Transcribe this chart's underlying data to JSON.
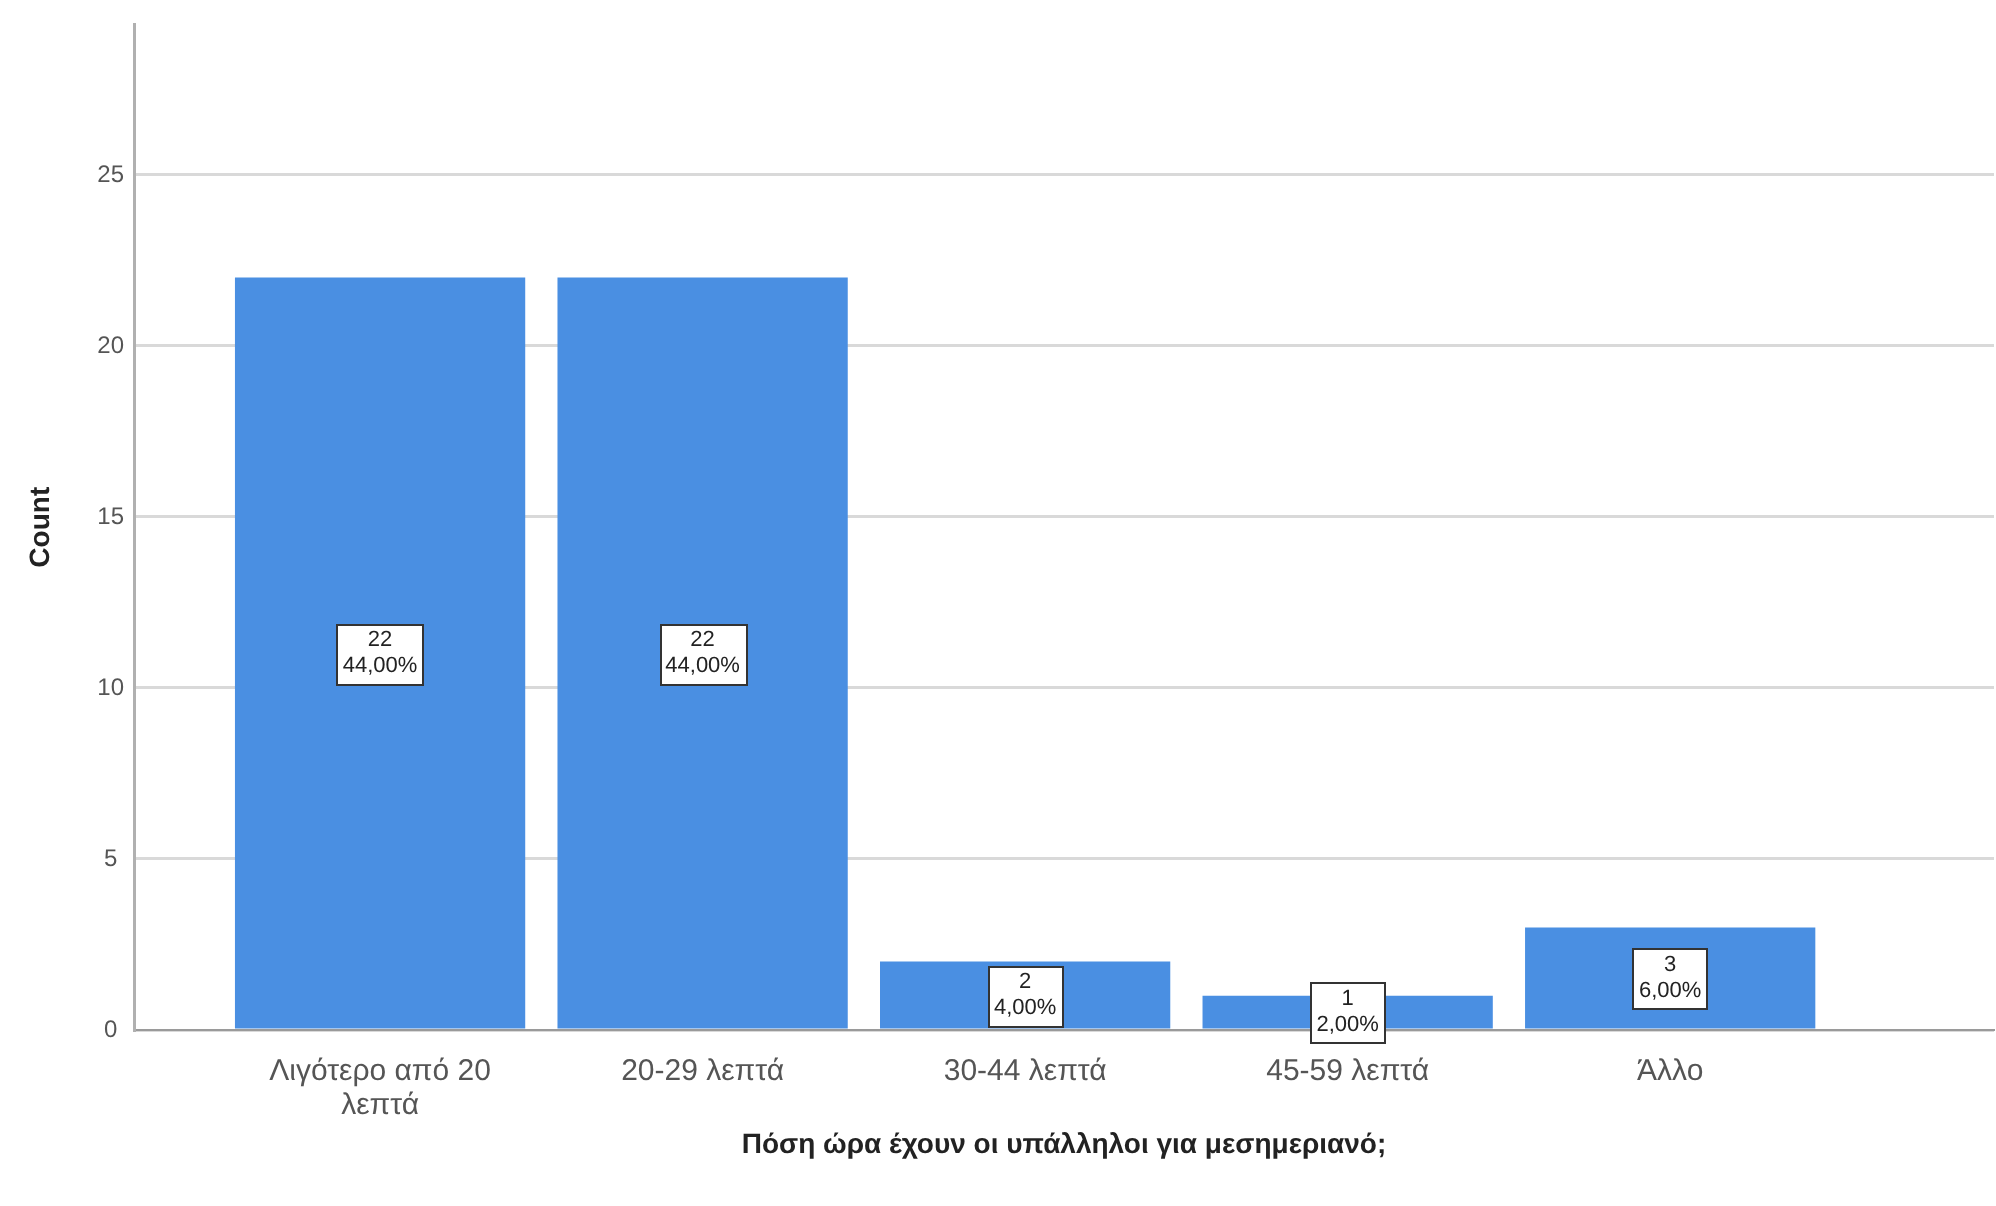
{
  "chart_data": {
    "type": "bar",
    "xlabel": "Πόση ώρα έχουν οι υπάλληλοι για μεσημεριανό;",
    "ylabel": "Count",
    "categories": [
      "Λιγότερο από 20 λεπτά",
      "20-29 λεπτά",
      "30-44 λεπτά",
      "45-59 λεπτά",
      "Άλλο"
    ],
    "values": [
      22,
      22,
      2,
      1,
      3
    ],
    "color": "#4a8fe2",
    "value_labels": [
      "22\n44,00%",
      "22\n44,00%",
      "2\n4,00%",
      "1\n2,00%",
      "3\n6,00%"
    ],
    "ylim": [
      0,
      29.4
    ],
    "yticks": [
      0,
      5,
      10,
      15,
      20,
      25
    ],
    "grid": "y"
  }
}
